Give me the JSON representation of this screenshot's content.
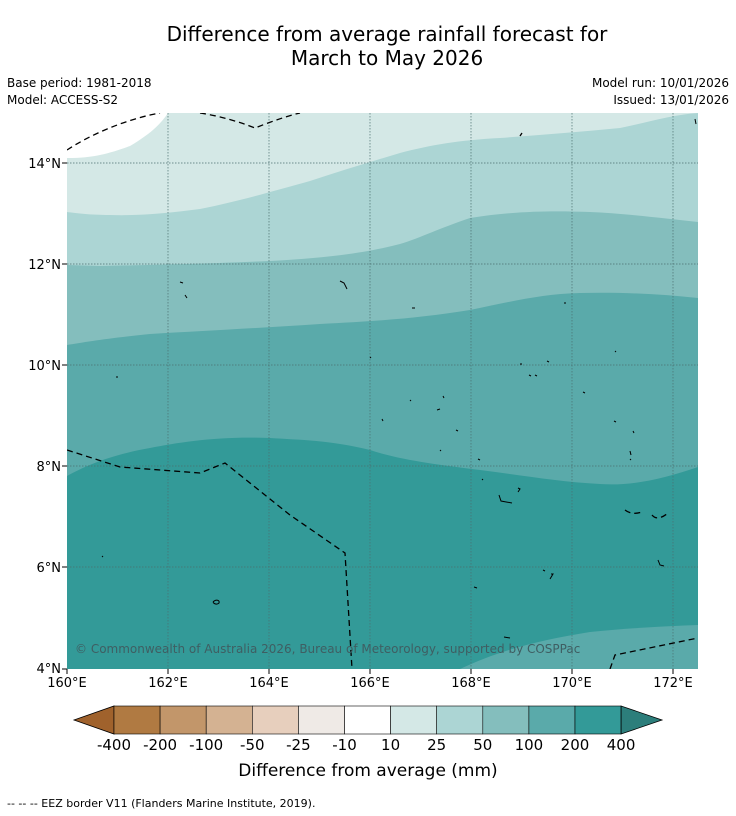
{
  "title": {
    "line1": "Difference from average rainfall forecast for",
    "line2": "March to May 2026"
  },
  "meta": {
    "base_period": "Base period: 1981-2018",
    "model": "Model: ACCESS-S2",
    "model_run": "Model run: 10/01/2026",
    "issued": "Issued: 13/01/2026"
  },
  "map": {
    "lat_labels": [
      "14°N",
      "12°N",
      "10°N",
      "8°N",
      "6°N",
      "4°N"
    ],
    "lon_labels": [
      "160°E",
      "162°E",
      "164°E",
      "166°E",
      "168°E",
      "170°E",
      "172°E"
    ],
    "credit": "© Commonwealth of Australia 2026, Bureau of Meteorology, supported by COSPPac"
  },
  "colorbar": {
    "tick_labels": [
      "-400",
      "-200",
      "-100",
      "-50",
      "-25",
      "-10",
      "10",
      "25",
      "50",
      "100",
      "200",
      "400"
    ],
    "colors": [
      "#a0622c",
      "#b07a42",
      "#c2966a",
      "#d4b292",
      "#e7cfbd",
      "#efeae6",
      "#ffffff",
      "#d4e8e6",
      "#acd5d4",
      "#84bebd",
      "#5aaaaa",
      "#339a98",
      "#2c7e7b"
    ],
    "label": "Difference from average (mm)"
  },
  "footer": "--  --  -- EEZ border V11 (Flanders Marine Institute, 2019)."
}
